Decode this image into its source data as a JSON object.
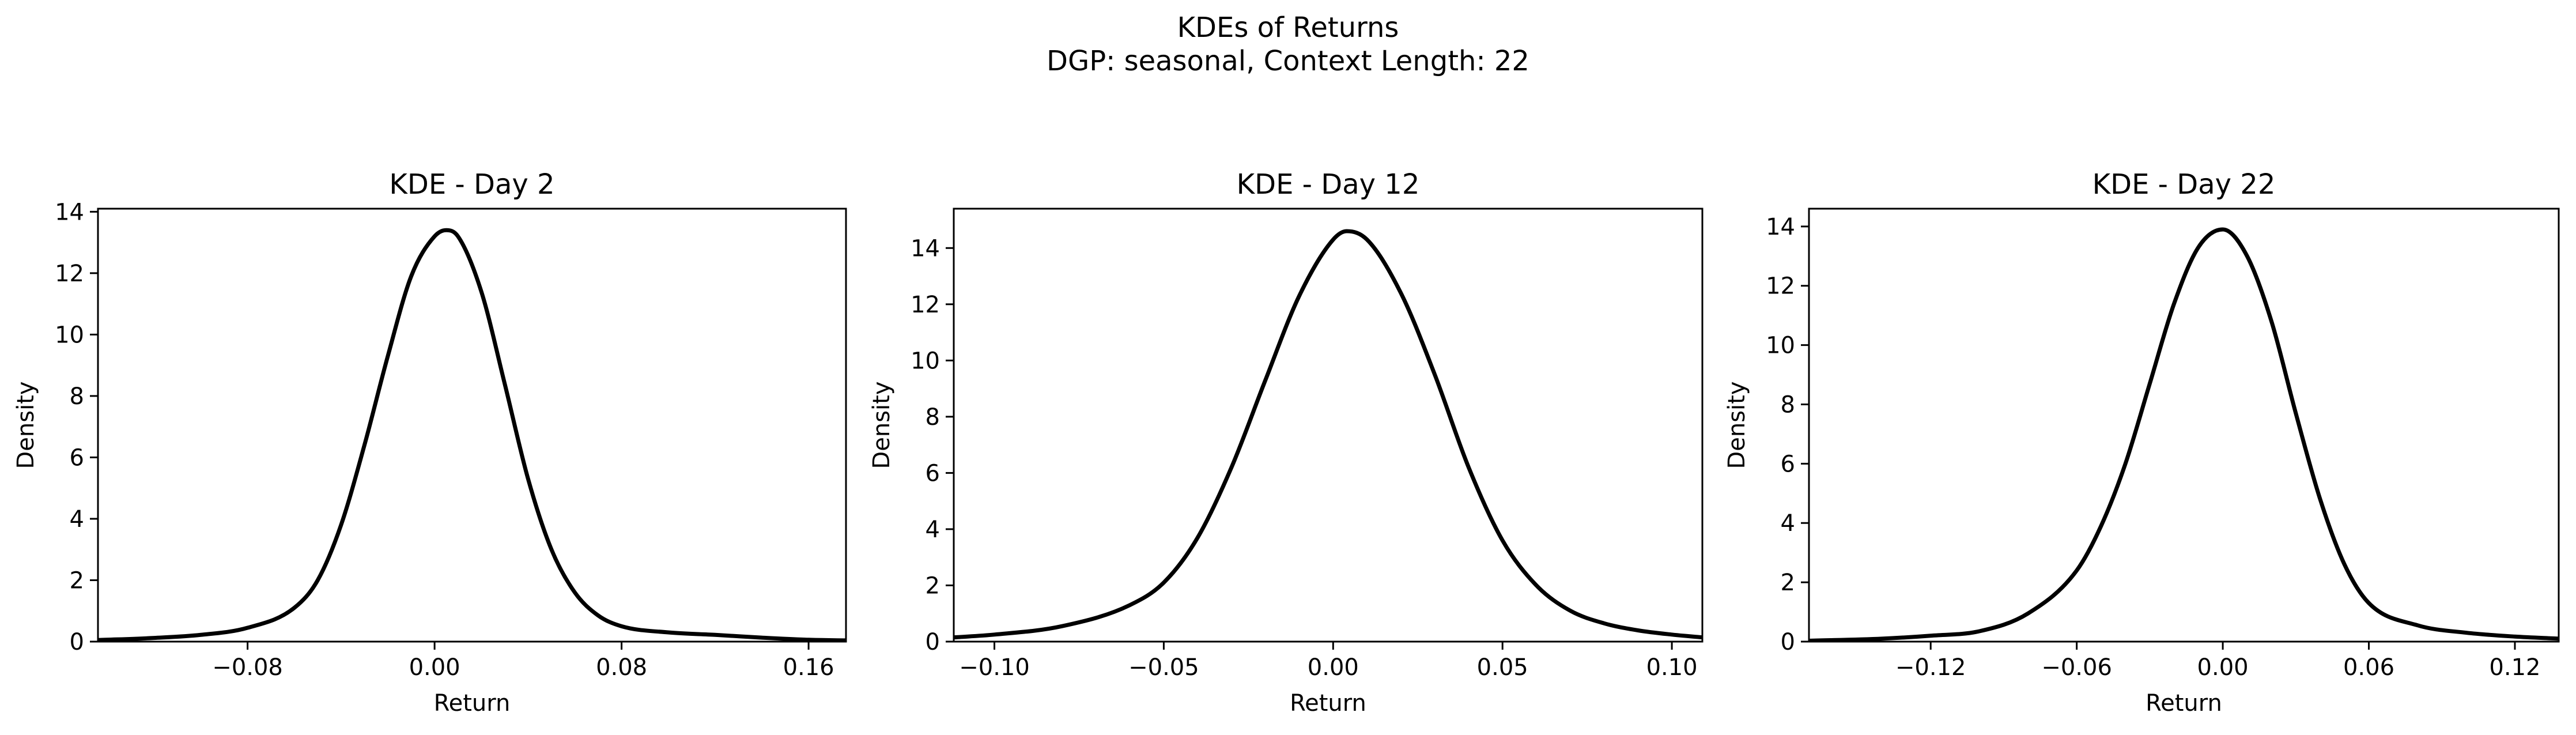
{
  "figure": {
    "title_line1": "KDEs of Returns",
    "title_line2": "DGP: seasonal, Context Length: 22",
    "line_color": "#000000",
    "background": "#ffffff"
  },
  "chart_data": [
    {
      "type": "line",
      "title": "KDE - Day 2",
      "xlabel": "Return",
      "ylabel": "Density",
      "xlim": [
        -0.144,
        0.176
      ],
      "ylim": [
        0,
        14.1
      ],
      "xticks": [
        -0.08,
        0.0,
        0.08,
        0.16
      ],
      "xtick_labels": [
        "−0.08",
        "0.00",
        "0.08",
        "0.16"
      ],
      "yticks": [
        0,
        2,
        4,
        6,
        8,
        10,
        12,
        14
      ],
      "ytick_labels": [
        "0",
        "2",
        "4",
        "6",
        "8",
        "10",
        "12",
        "14"
      ],
      "grid": false,
      "series": [
        {
          "x": [
            -0.144,
            -0.12,
            -0.1,
            -0.08,
            -0.06,
            -0.05,
            -0.04,
            -0.03,
            -0.02,
            -0.01,
            0.0,
            0.005,
            0.01,
            0.02,
            0.03,
            0.04,
            0.05,
            0.06,
            0.07,
            0.08,
            0.1,
            0.12,
            0.14,
            0.16,
            0.176
          ],
          "y": [
            0.05,
            0.12,
            0.22,
            0.45,
            1.1,
            2.0,
            3.8,
            6.4,
            9.3,
            11.9,
            13.2,
            13.4,
            13.2,
            11.4,
            8.4,
            5.3,
            3.0,
            1.6,
            0.85,
            0.5,
            0.3,
            0.22,
            0.13,
            0.06,
            0.04
          ]
        }
      ]
    },
    {
      "type": "line",
      "title": "KDE - Day 12",
      "xlabel": "Return",
      "ylabel": "Density",
      "xlim": [
        -0.112,
        0.109
      ],
      "ylim": [
        0,
        15.4
      ],
      "xticks": [
        -0.1,
        -0.05,
        0.0,
        0.05,
        0.1
      ],
      "xtick_labels": [
        "−0.10",
        "−0.05",
        "0.00",
        "0.05",
        "0.10"
      ],
      "yticks": [
        0,
        2,
        4,
        6,
        8,
        10,
        12,
        14
      ],
      "ytick_labels": [
        "0",
        "2",
        "4",
        "6",
        "8",
        "10",
        "12",
        "14"
      ],
      "grid": false,
      "series": [
        {
          "x": [
            -0.112,
            -0.1,
            -0.08,
            -0.06,
            -0.05,
            -0.04,
            -0.03,
            -0.02,
            -0.01,
            0.0,
            0.004,
            0.01,
            0.02,
            0.03,
            0.04,
            0.05,
            0.06,
            0.07,
            0.08,
            0.09,
            0.1,
            0.109
          ],
          "y": [
            0.15,
            0.25,
            0.55,
            1.3,
            2.1,
            3.7,
            6.2,
            9.3,
            12.3,
            14.3,
            14.6,
            14.3,
            12.4,
            9.5,
            6.2,
            3.6,
            2.0,
            1.1,
            0.65,
            0.4,
            0.25,
            0.15
          ]
        }
      ]
    },
    {
      "type": "line",
      "title": "KDE - Day 22",
      "xlabel": "Return",
      "ylabel": "Density",
      "xlim": [
        -0.17,
        0.138
      ],
      "ylim": [
        0,
        14.6
      ],
      "xticks": [
        -0.12,
        -0.06,
        0.0,
        0.06,
        0.12
      ],
      "xtick_labels": [
        "−0.12",
        "−0.06",
        "0.00",
        "0.06",
        "0.12"
      ],
      "yticks": [
        0,
        2,
        4,
        6,
        8,
        10,
        12,
        14
      ],
      "ytick_labels": [
        "0",
        "2",
        "4",
        "6",
        "8",
        "10",
        "12",
        "14"
      ],
      "grid": false,
      "series": [
        {
          "x": [
            -0.17,
            -0.14,
            -0.12,
            -0.1,
            -0.08,
            -0.06,
            -0.05,
            -0.04,
            -0.03,
            -0.02,
            -0.01,
            0.0,
            0.01,
            0.02,
            0.03,
            0.04,
            0.05,
            0.06,
            0.08,
            0.1,
            0.12,
            0.138
          ],
          "y": [
            0.03,
            0.1,
            0.2,
            0.35,
            0.95,
            2.4,
            3.9,
            6.0,
            8.7,
            11.4,
            13.3,
            13.9,
            13.0,
            10.8,
            7.7,
            4.8,
            2.6,
            1.3,
            0.55,
            0.3,
            0.17,
            0.1
          ]
        }
      ]
    }
  ]
}
